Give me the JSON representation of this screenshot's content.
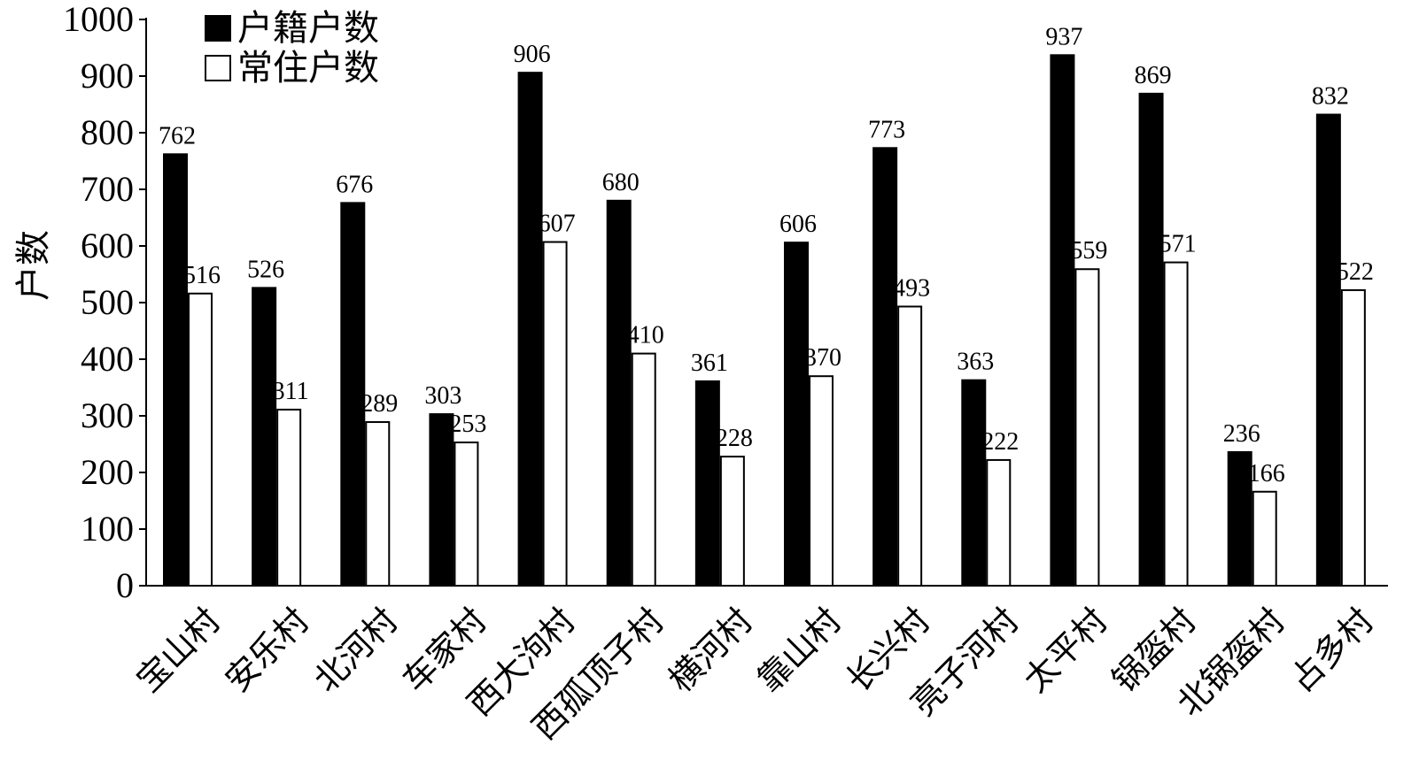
{
  "chart_data": {
    "type": "bar",
    "ylabel": "户数",
    "ylim": [
      0,
      1000
    ],
    "yticks": [
      0,
      100,
      200,
      300,
      400,
      500,
      600,
      700,
      800,
      900,
      1000
    ],
    "legend_position": "top-left",
    "grid": false,
    "categories": [
      "宝山村",
      "安乐村",
      "北河村",
      "车家村",
      "西大泃村",
      "西孤顶子村",
      "横河村",
      "靠山村",
      "长兴村",
      "亮子河村",
      "太平村",
      "锅盔村",
      "北锅盔村",
      "占多村"
    ],
    "series": [
      {
        "name": "户籍户数",
        "color": "#000000",
        "values": [
          762,
          526,
          676,
          303,
          906,
          680,
          361,
          606,
          773,
          363,
          937,
          869,
          236,
          832
        ]
      },
      {
        "name": "常住户数",
        "color": "#ffffff",
        "values": [
          516,
          311,
          289,
          253,
          607,
          410,
          228,
          370,
          493,
          222,
          559,
          571,
          166,
          522
        ]
      }
    ]
  }
}
